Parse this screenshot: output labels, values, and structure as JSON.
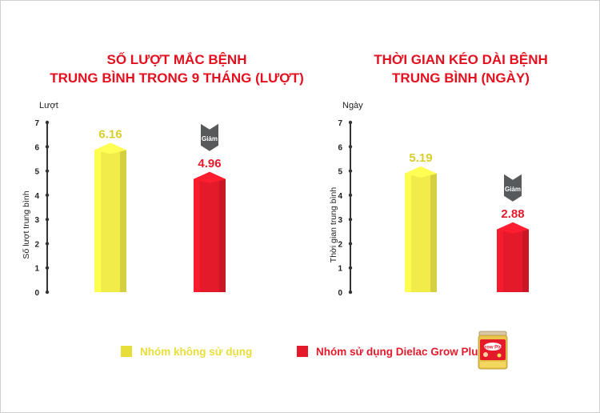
{
  "colors": {
    "title_red": "#e3101f",
    "yellow_series": "#f2ec4a",
    "red_series": "#e41a2b",
    "badge_gray": "#58595b",
    "axis": "#333333"
  },
  "charts": [
    {
      "title_line1": "SỐ LƯỢT MẮC BỆNH",
      "title_line2": "TRUNG BÌNH TRONG 9 THÁNG (LƯỢT)",
      "unit_label": "Lượt",
      "ylabel": "Số lượt trung bình",
      "decrease_badge": "Giảm"
    },
    {
      "title_line1": "THỜI GIAN KÉO DÀI BỆNH",
      "title_line2": "TRUNG BÌNH (NGÀY)",
      "unit_label": "Ngày",
      "ylabel": "Thời gian trung bình",
      "decrease_badge": "Giảm"
    }
  ],
  "chart_data": [
    {
      "type": "bar",
      "title": "SỐ LƯỢT MẮC BỆNH TRUNG BÌNH TRONG 9 THÁNG (LƯỢT)",
      "ylabel": "Số lượt trung bình",
      "unit": "Lượt",
      "ylim": [
        0,
        7
      ],
      "yticks": [
        "0",
        "1",
        "2",
        "3",
        "4",
        "5",
        "6",
        "7"
      ],
      "series": [
        {
          "name": "Nhóm không sử dụng",
          "value": 6.16,
          "label": "6.16"
        },
        {
          "name": "Nhóm sử dụng Dielac Grow Plus",
          "value": 4.96,
          "label": "4.96"
        }
      ],
      "grid": false
    },
    {
      "type": "bar",
      "title": "THỜI GIAN KÉO DÀI BỆNH TRUNG BÌNH (NGÀY)",
      "ylabel": "Thời gian trung bình",
      "unit": "Ngày",
      "ylim": [
        0,
        7
      ],
      "yticks": [
        "0",
        "1",
        "2",
        "3",
        "4",
        "5",
        "6",
        "7"
      ],
      "series": [
        {
          "name": "Nhóm không sử dụng",
          "value": 5.19,
          "label": "5.19"
        },
        {
          "name": "Nhóm sử dụng Dielac Grow Plus",
          "value": 2.88,
          "label": "2.88"
        }
      ],
      "grid": false
    }
  ],
  "legend": {
    "items": [
      {
        "label": "Nhóm không sử dụng",
        "color": "#e8de3a"
      },
      {
        "label": "Nhóm sử dụng Dielac Grow Plus",
        "color": "#e41a2b"
      }
    ]
  },
  "product": {
    "icon": "dielac-grow-plus-can-icon",
    "brand_text": "Grow Plus"
  }
}
